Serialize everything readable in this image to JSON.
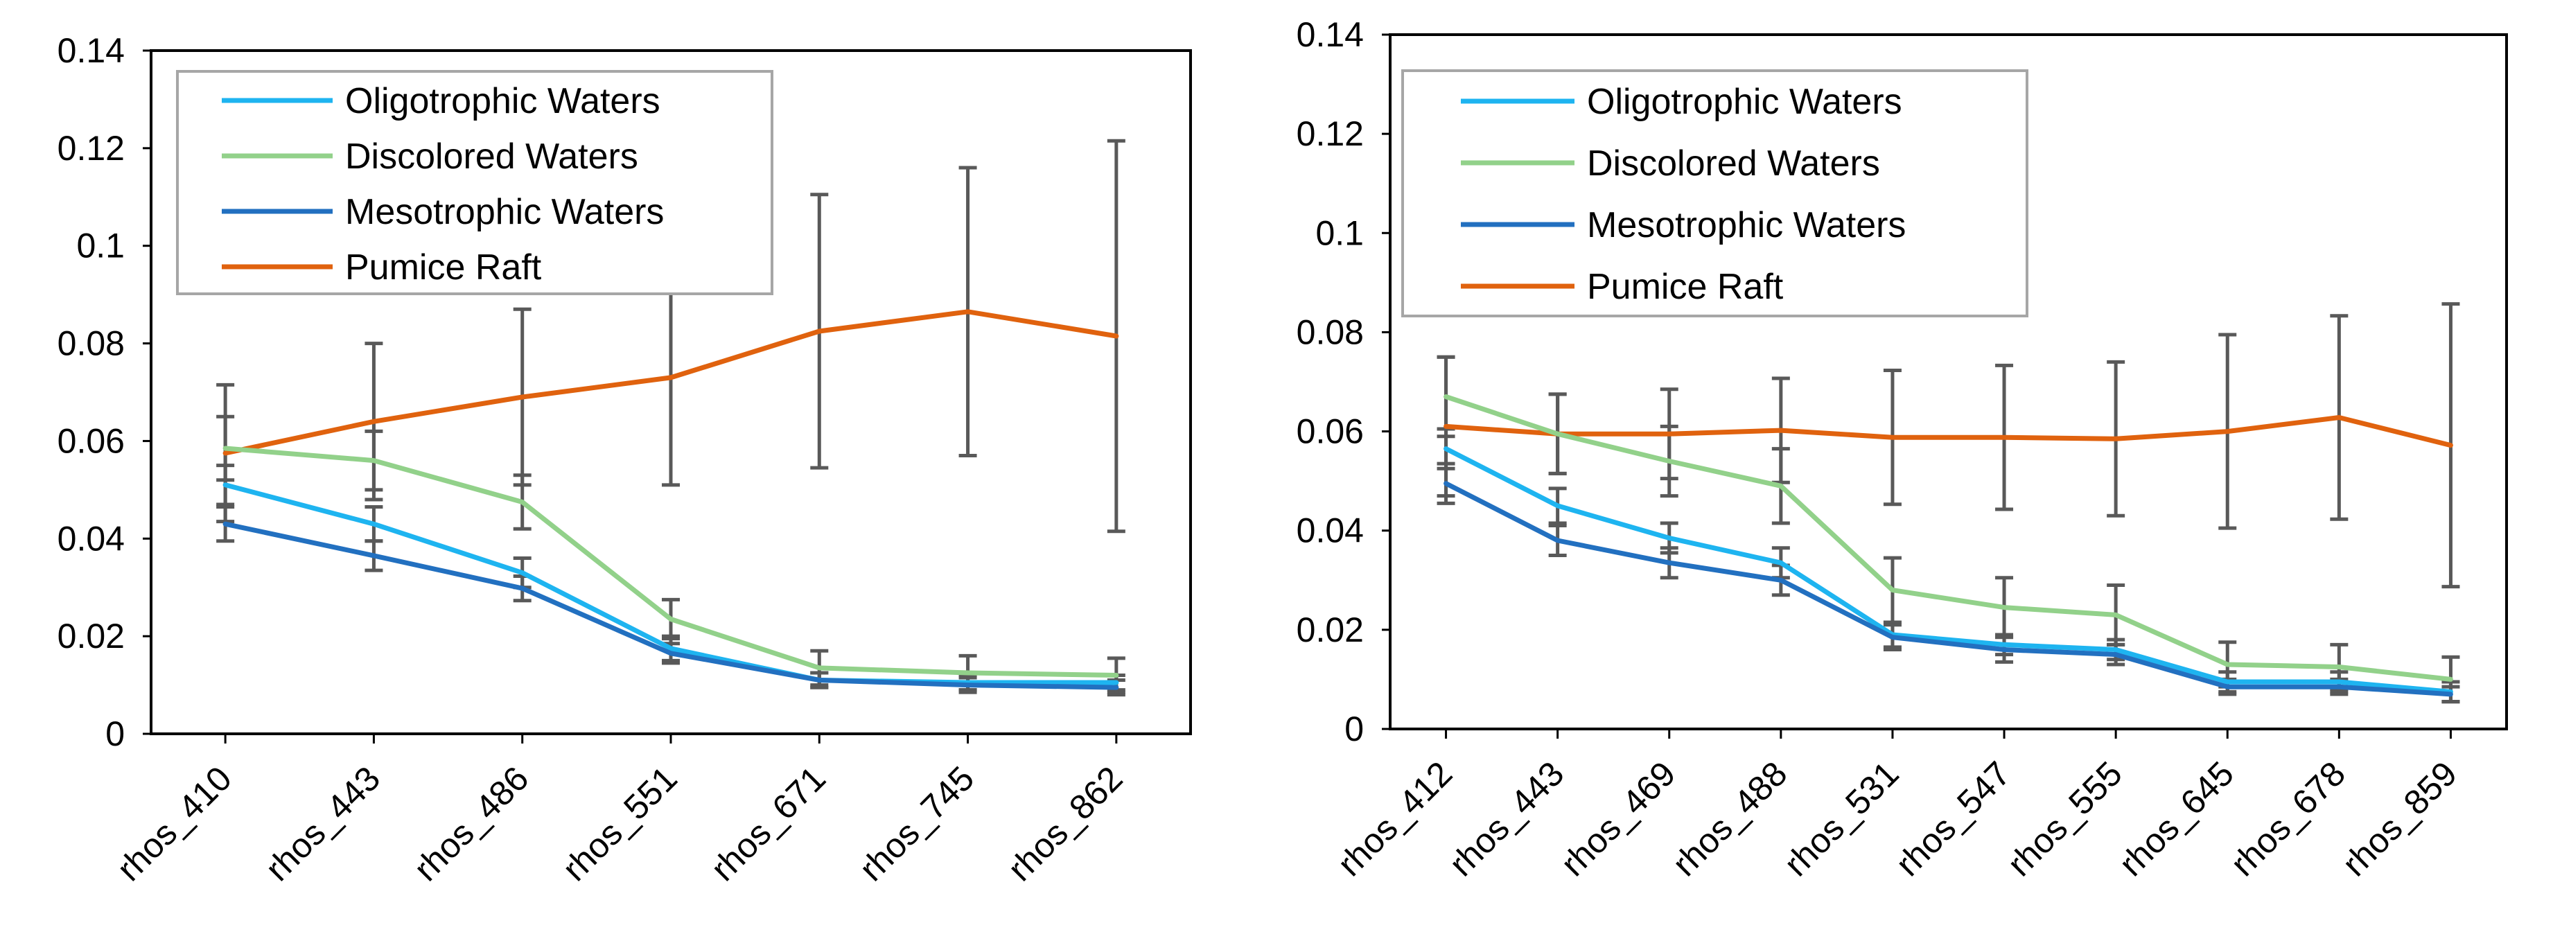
{
  "chart_data": [
    {
      "type": "line",
      "title": "",
      "xlabel": "",
      "ylabel": "",
      "ylim": [
        0,
        0.14
      ],
      "yticks": [
        "0",
        "0.02",
        "0.04",
        "0.06",
        "0.08",
        "0.1",
        "0.12",
        "0.14"
      ],
      "grid": false,
      "legend_position": "top-left",
      "categories": [
        "rhos_410",
        "rhos_443",
        "rhos_486",
        "rhos_551",
        "rhos_671",
        "rhos_745",
        "rhos_862"
      ],
      "series": [
        {
          "name": "Oligotrophic Waters",
          "color": "#1EB4F0",
          "values": [
            0.051,
            0.043,
            0.033,
            0.0175,
            0.011,
            0.0105,
            0.0105
          ],
          "error": [
            0.004,
            0.0035,
            0.003,
            0.0025,
            0.0015,
            0.0015,
            0.0015
          ]
        },
        {
          "name": "Discolored Waters",
          "color": "#92D18A",
          "values": [
            0.0585,
            0.056,
            0.0475,
            0.0235,
            0.0135,
            0.0125,
            0.012
          ],
          "error": [
            0.0065,
            0.006,
            0.0055,
            0.004,
            0.0035,
            0.0035,
            0.0035
          ]
        },
        {
          "name": "Mesotrophic Waters",
          "color": "#2270C0",
          "values": [
            0.043,
            0.0365,
            0.0298,
            0.0165,
            0.011,
            0.01,
            0.0095
          ],
          "error": [
            0.0035,
            0.003,
            0.0025,
            0.002,
            0.0015,
            0.0015,
            0.0015
          ]
        },
        {
          "name": "Pumice Raft",
          "color": "#E0620E",
          "values": [
            0.0575,
            0.064,
            0.069,
            0.073,
            0.0825,
            0.0865,
            0.0815
          ],
          "error": [
            0.014,
            0.016,
            0.018,
            0.022,
            0.028,
            0.0295,
            0.04
          ]
        }
      ]
    },
    {
      "type": "line",
      "title": "",
      "xlabel": "",
      "ylabel": "",
      "ylim": [
        0,
        0.14
      ],
      "yticks": [
        "0",
        "0.02",
        "0.04",
        "0.06",
        "0.08",
        "0.1",
        "0.12",
        "0.14"
      ],
      "grid": false,
      "legend_position": "top-left",
      "categories": [
        "rhos_412",
        "rhos_443",
        "rhos_469",
        "rhos_488",
        "rhos_531",
        "rhos_547",
        "rhos_555",
        "rhos_645",
        "rhos_678",
        "rhos_859"
      ],
      "series": [
        {
          "name": "Oligotrophic Waters",
          "color": "#1EB4F0",
          "values": [
            0.0565,
            0.045,
            0.0385,
            0.0335,
            0.019,
            0.017,
            0.016,
            0.0095,
            0.0095,
            0.0075
          ],
          "error": [
            0.004,
            0.0035,
            0.003,
            0.003,
            0.0025,
            0.002,
            0.002,
            0.002,
            0.002,
            0.002
          ]
        },
        {
          "name": "Discolored Waters",
          "color": "#92D18A",
          "values": [
            0.067,
            0.0595,
            0.054,
            0.049,
            0.028,
            0.0245,
            0.023,
            0.013,
            0.0125,
            0.01
          ],
          "error": [
            0.008,
            0.008,
            0.007,
            0.0075,
            0.0065,
            0.006,
            0.006,
            0.0045,
            0.0045,
            0.0045
          ]
        },
        {
          "name": "Mesotrophic Waters",
          "color": "#2270C0",
          "values": [
            0.0495,
            0.038,
            0.0335,
            0.03,
            0.0185,
            0.016,
            0.015,
            0.0085,
            0.0085,
            0.007
          ],
          "error": [
            0.004,
            0.003,
            0.003,
            0.003,
            0.0025,
            0.0025,
            0.002,
            0.0015,
            0.0015,
            0.0015
          ]
        },
        {
          "name": "Pumice Raft",
          "color": "#E0620E",
          "values": [
            0.061,
            0.0595,
            0.0595,
            0.0602,
            0.0588,
            0.0588,
            0.0585,
            0.06,
            0.0628,
            0.0572
          ],
          "error": [
            0.014,
            0.008,
            0.009,
            0.0105,
            0.0135,
            0.0145,
            0.0155,
            0.0195,
            0.0205,
            0.0285
          ]
        }
      ]
    }
  ]
}
